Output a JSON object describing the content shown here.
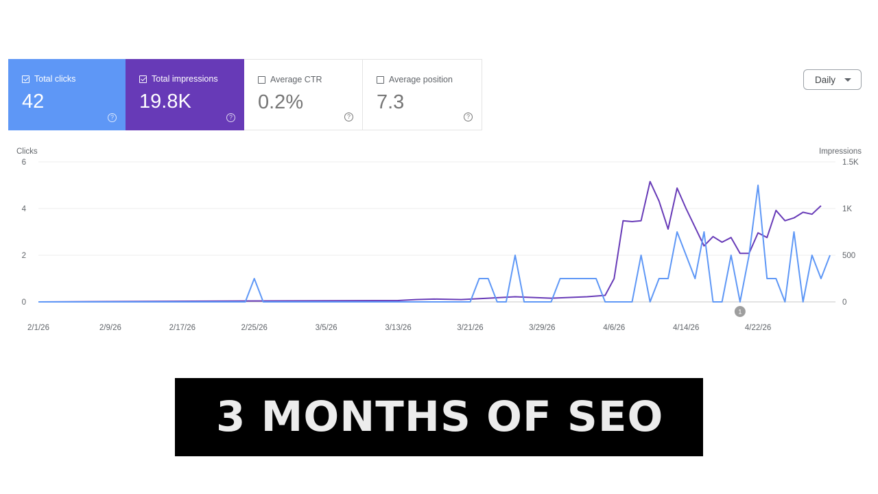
{
  "metrics": [
    {
      "label": "Total clicks",
      "value": "42",
      "selected": true,
      "color": "#5e97f6"
    },
    {
      "label": "Total impressions",
      "value": "19.8K",
      "selected": true,
      "color": "#673ab7"
    },
    {
      "label": "Average CTR",
      "value": "0.2%",
      "selected": false
    },
    {
      "label": "Average position",
      "value": "7.3",
      "selected": false
    }
  ],
  "help_icon_glyph": "?",
  "period_dropdown": {
    "label": "Daily"
  },
  "banner": {
    "text": "3 MONTHS OF SEO"
  },
  "chart_data": {
    "type": "line",
    "ylabel_left": "Clicks",
    "ylabel_right": "Impressions",
    "y_left_ticks": [
      "6",
      "4",
      "2",
      "0"
    ],
    "y_right_ticks": [
      "1.5K",
      "1K",
      "500",
      "0"
    ],
    "ylim_left": [
      0,
      6
    ],
    "ylim_right": [
      0,
      1500
    ],
    "grid": true,
    "x_ticks": [
      "2/1/26",
      "2/9/26",
      "2/17/26",
      "2/25/26",
      "3/5/26",
      "3/13/26",
      "3/21/26",
      "3/29/26",
      "4/6/26",
      "4/14/26",
      "4/22/26"
    ],
    "annotation": {
      "date": "4/20/26",
      "label": "1"
    },
    "series": [
      {
        "name": "Clicks",
        "axis": "left",
        "color": "#5e97f6",
        "points": [
          [
            "2/1/26",
            0
          ],
          [
            "2/24/26",
            0
          ],
          [
            "2/25/26",
            1
          ],
          [
            "2/26/26",
            0
          ],
          [
            "3/21/26",
            0
          ],
          [
            "3/22/26",
            1
          ],
          [
            "3/23/26",
            1
          ],
          [
            "3/24/26",
            0
          ],
          [
            "3/25/26",
            0
          ],
          [
            "3/26/26",
            2
          ],
          [
            "3/27/26",
            0
          ],
          [
            "3/30/26",
            0
          ],
          [
            "3/31/26",
            1
          ],
          [
            "4/4/26",
            1
          ],
          [
            "4/5/26",
            0
          ],
          [
            "4/8/26",
            0
          ],
          [
            "4/9/26",
            2
          ],
          [
            "4/10/26",
            0
          ],
          [
            "4/11/26",
            1
          ],
          [
            "4/12/26",
            1
          ],
          [
            "4/13/26",
            3
          ],
          [
            "4/14/26",
            2
          ],
          [
            "4/15/26",
            1
          ],
          [
            "4/16/26",
            3
          ],
          [
            "4/17/26",
            0
          ],
          [
            "4/18/26",
            0
          ],
          [
            "4/19/26",
            2
          ],
          [
            "4/20/26",
            0
          ],
          [
            "4/21/26",
            2
          ],
          [
            "4/22/26",
            5
          ],
          [
            "4/23/26",
            1
          ],
          [
            "4/24/26",
            1
          ],
          [
            "4/25/26",
            0
          ],
          [
            "4/26/26",
            3
          ],
          [
            "4/27/26",
            0
          ],
          [
            "4/28/26",
            2
          ],
          [
            "4/29/26",
            1
          ],
          [
            "4/30/26",
            2
          ]
        ]
      },
      {
        "name": "Impressions",
        "axis": "right",
        "color": "#673ab7",
        "points": [
          [
            "2/1/26",
            0
          ],
          [
            "2/25/26",
            10
          ],
          [
            "3/13/26",
            15
          ],
          [
            "3/15/26",
            25
          ],
          [
            "3/17/26",
            30
          ],
          [
            "3/20/26",
            25
          ],
          [
            "3/23/26",
            40
          ],
          [
            "3/26/26",
            55
          ],
          [
            "3/30/26",
            40
          ],
          [
            "4/3/26",
            55
          ],
          [
            "4/5/26",
            70
          ],
          [
            "4/6/26",
            250
          ],
          [
            "4/7/26",
            870
          ],
          [
            "4/8/26",
            860
          ],
          [
            "4/9/26",
            870
          ],
          [
            "4/10/26",
            1290
          ],
          [
            "4/11/26",
            1080
          ],
          [
            "4/12/26",
            780
          ],
          [
            "4/13/26",
            1220
          ],
          [
            "4/14/26",
            1000
          ],
          [
            "4/15/26",
            800
          ],
          [
            "4/16/26",
            600
          ],
          [
            "4/17/26",
            700
          ],
          [
            "4/18/26",
            640
          ],
          [
            "4/19/26",
            690
          ],
          [
            "4/20/26",
            520
          ],
          [
            "4/21/26",
            520
          ],
          [
            "4/22/26",
            740
          ],
          [
            "4/23/26",
            690
          ],
          [
            "4/24/26",
            980
          ],
          [
            "4/25/26",
            870
          ],
          [
            "4/26/26",
            900
          ],
          [
            "4/27/26",
            960
          ],
          [
            "4/28/26",
            940
          ],
          [
            "4/29/26",
            1030
          ]
        ]
      }
    ]
  }
}
